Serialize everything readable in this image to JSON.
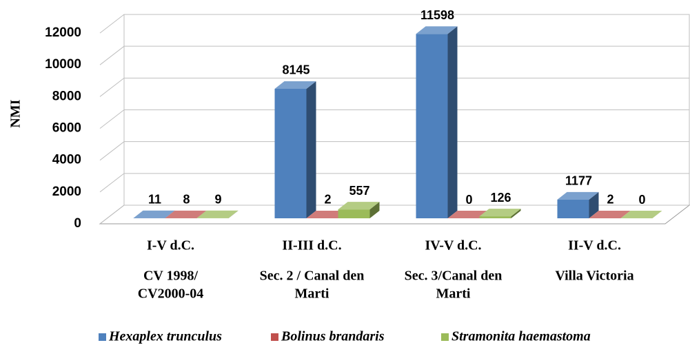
{
  "chart_data": {
    "type": "bar3d",
    "y_label": "NMI",
    "categories": [
      [
        "I-V d.C.",
        "CV 1998/",
        "CV2000-04"
      ],
      [
        "II-III d.C.",
        "Sec. 2 / Canal den",
        "Marti"
      ],
      [
        "IV-V d.C.",
        "Sec. 3/Canal den",
        "Marti"
      ],
      [
        "II-V d.C.",
        "Villa Victoria"
      ]
    ],
    "series": [
      {
        "name": "Hexaplex trunculus",
        "color": "#4f81bd",
        "values": [
          11,
          8145,
          11598,
          1177
        ]
      },
      {
        "name": "Bolinus brandaris",
        "color": "#c0504d",
        "values": [
          8,
          2,
          0,
          2
        ]
      },
      {
        "name": "Stramonita haemastoma",
        "color": "#9bbb59",
        "values": [
          9,
          557,
          126,
          0
        ]
      }
    ],
    "ylim": [
      0,
      12000
    ],
    "yticks": [
      0,
      2000,
      4000,
      6000,
      8000,
      10000,
      12000
    ],
    "grid": true,
    "legend": "bottom"
  }
}
